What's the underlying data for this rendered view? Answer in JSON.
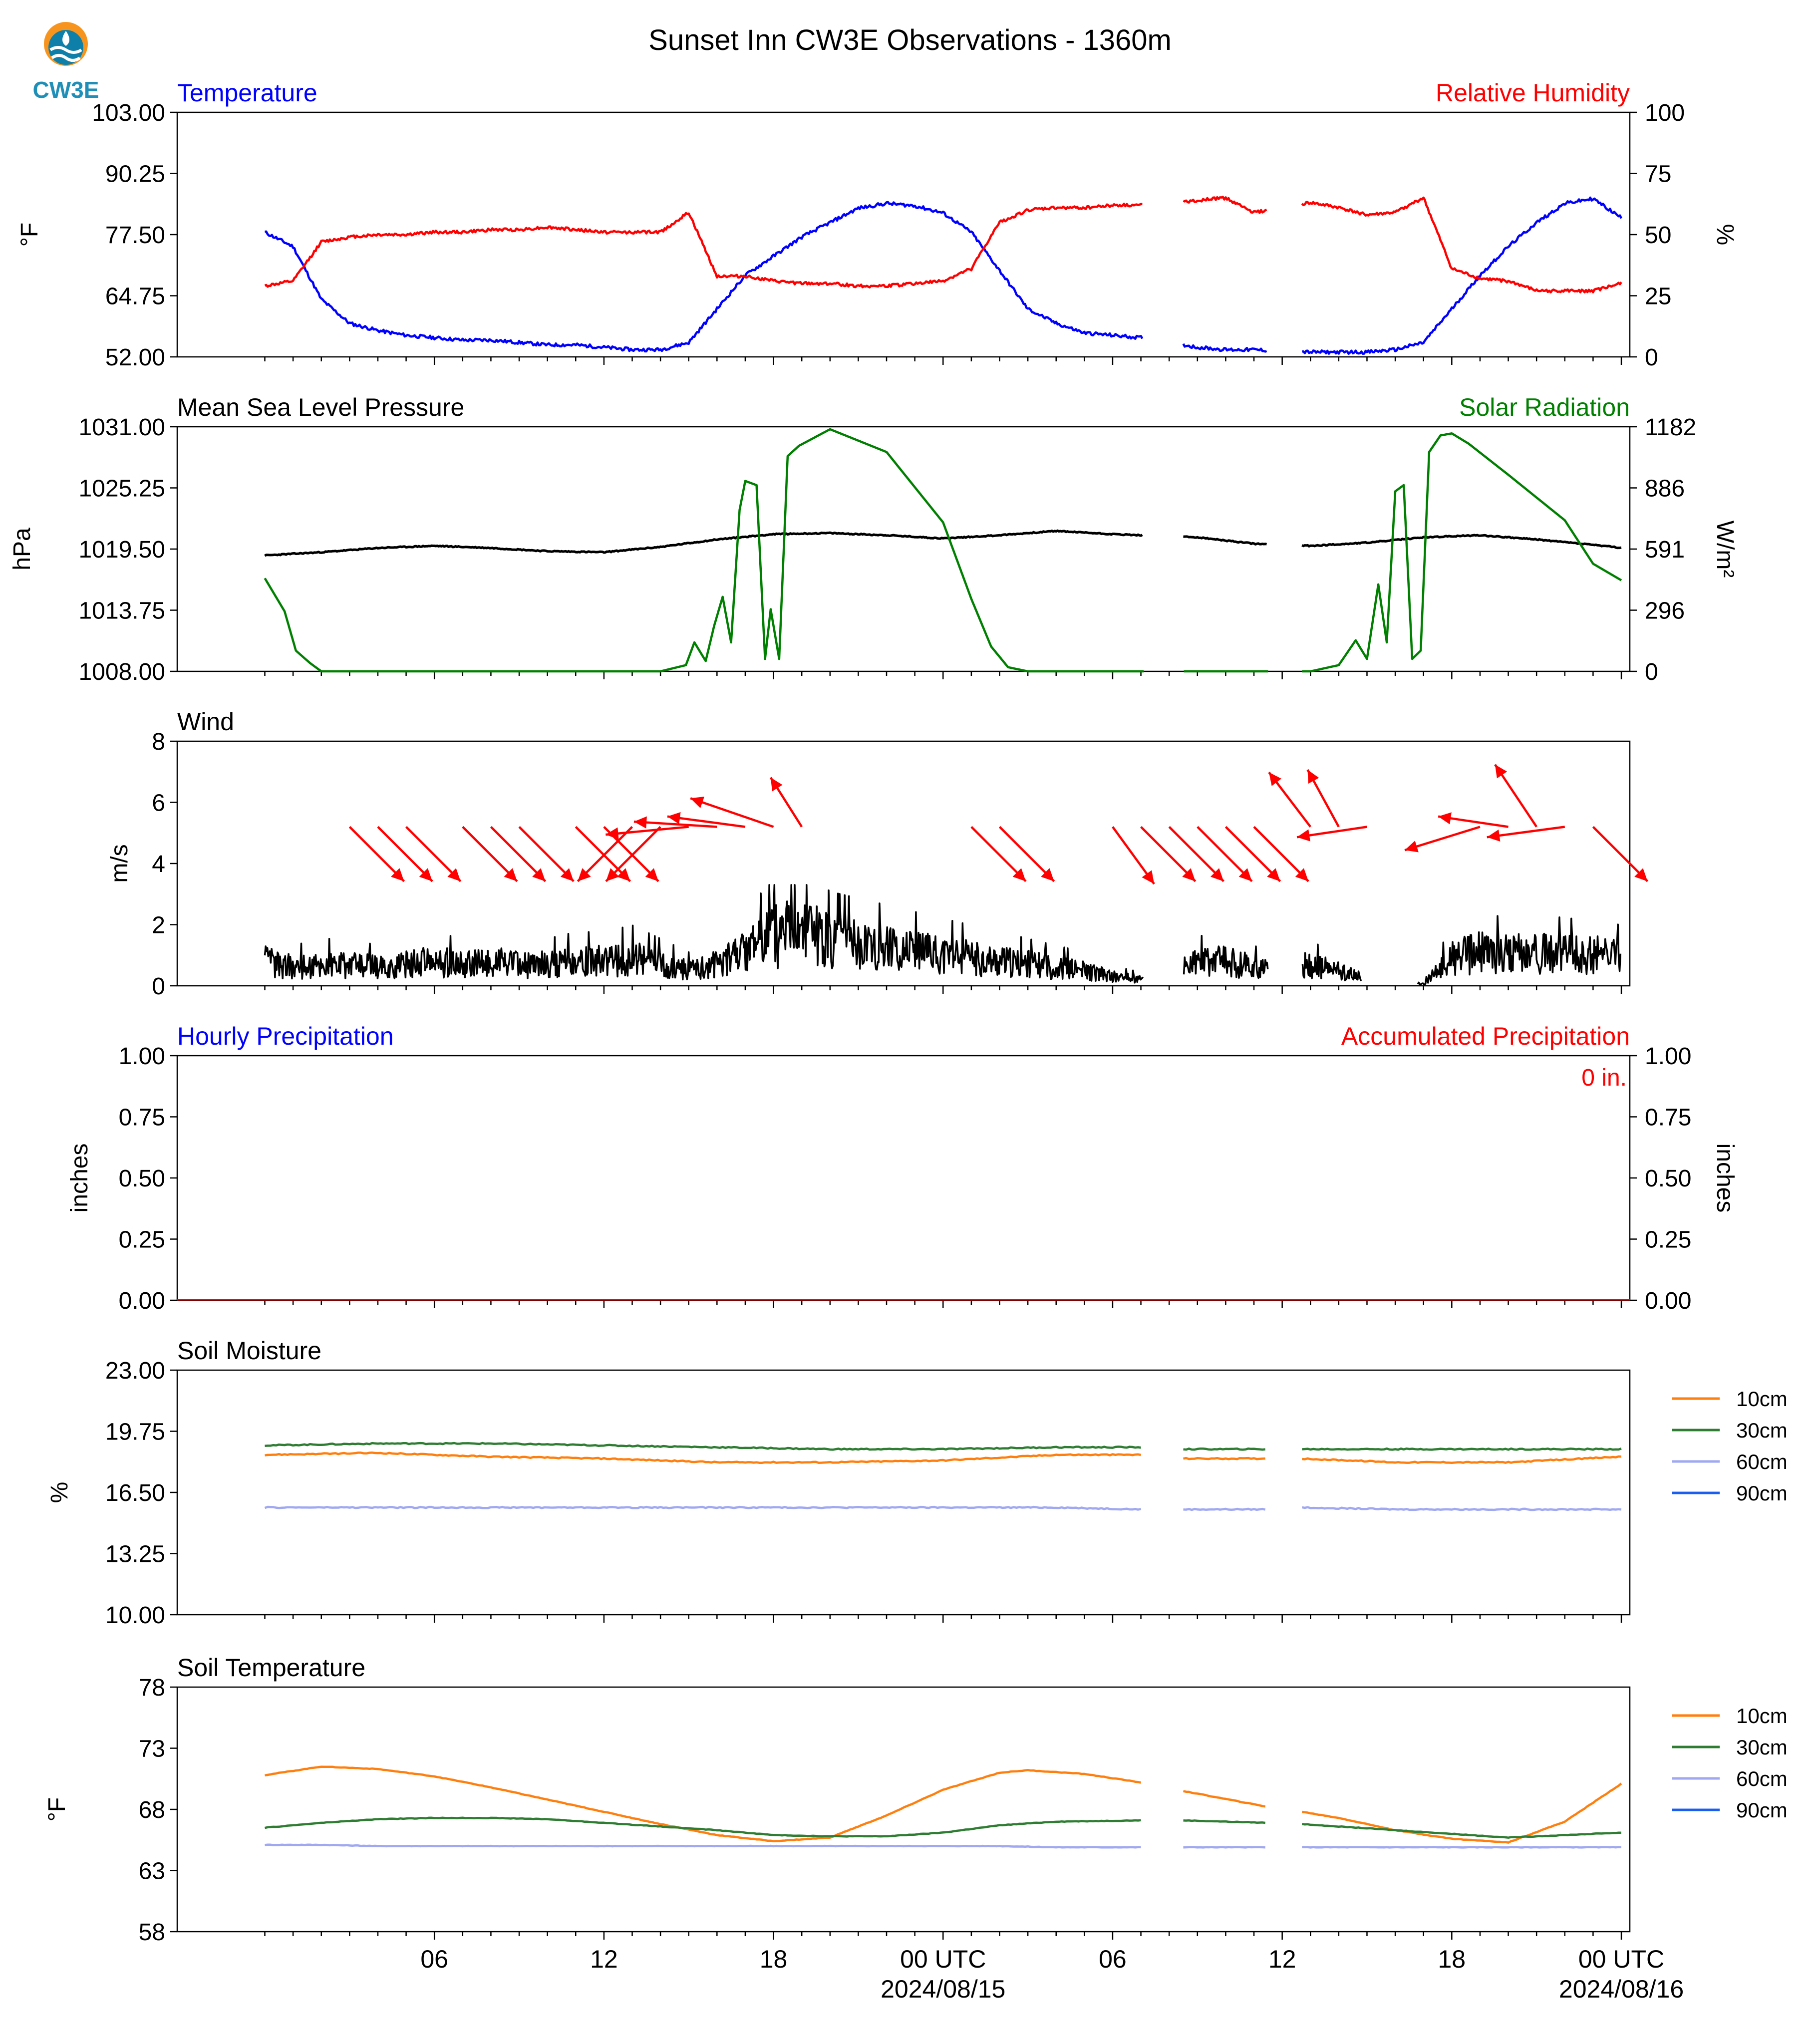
{
  "figure": {
    "title": "Sunset Inn CW3E Observations - 1360m",
    "logo_text": "CW3E"
  },
  "x_axis": {
    "tick_labels": [
      "06",
      "12",
      "18",
      "00 UTC",
      "06",
      "12",
      "18",
      "00 UTC"
    ],
    "date_labels": [
      "2024/08/15",
      "2024/08/16"
    ]
  },
  "colors": {
    "temperature": "#0000ff",
    "humidity": "#ff0000",
    "pressure": "#000000",
    "solar": "#008000",
    "wind_arrow": "#ff0000",
    "soil_10cm": "#ff7f0e",
    "soil_30cm": "#2e7d32",
    "soil_60cm": "#9fa8f0",
    "soil_90cm": "#1a5ef0"
  },
  "chart_data": [
    {
      "type": "line",
      "left_title": "Temperature",
      "right_title": "Relative Humidity",
      "ylabel": "°F",
      "ylabel_right": "%",
      "ylim": [
        52.0,
        103.0
      ],
      "ylim_right": [
        0,
        100
      ],
      "yticks": [
        "52.00",
        "64.75",
        "77.50",
        "90.25",
        "103.00"
      ],
      "yticks_right": [
        "0",
        "25",
        "50",
        "75",
        "100"
      ],
      "x_hours": [
        0,
        1,
        2,
        3,
        4,
        5,
        6,
        7,
        8,
        9,
        10,
        11,
        12,
        13,
        14,
        15,
        16,
        17,
        18,
        19,
        20,
        21,
        22,
        23,
        24,
        25,
        26,
        27,
        28,
        29,
        30,
        31,
        33,
        34,
        35,
        37,
        38,
        39,
        40,
        41,
        42,
        43,
        44,
        45,
        46,
        47,
        48
      ],
      "series": [
        {
          "name": "Temperature",
          "axis": "left",
          "values": [
            78,
            75,
            64,
            59,
            57.5,
            56.5,
            56,
            55.5,
            55.5,
            55,
            54.5,
            54.5,
            54,
            53.5,
            53.5,
            55,
            62,
            69,
            73,
            77,
            80,
            83,
            84,
            83.5,
            82,
            78,
            70,
            62,
            59,
            57,
            56.5,
            56,
            54,
            53.5,
            53.5,
            53,
            53,
            53,
            53.5,
            55,
            62,
            69,
            75,
            80,
            84,
            85,
            81
          ]
        },
        {
          "name": "Relative Humidity",
          "axis": "right",
          "values": [
            29,
            31,
            47,
            49,
            50,
            50,
            51,
            51,
            52,
            52,
            53,
            52,
            51,
            51,
            51,
            59,
            33,
            33,
            31,
            30,
            30,
            29,
            29,
            30,
            31,
            36,
            55,
            60,
            61,
            61,
            62,
            62,
            64,
            65,
            59,
            63,
            61,
            58,
            59,
            65,
            36,
            32,
            31,
            27,
            27,
            27,
            30
          ]
        }
      ],
      "gaps_hours": [
        [
          31.1,
          32.5
        ],
        [
          35.5,
          36.7
        ]
      ]
    },
    {
      "type": "line",
      "left_title": "Mean Sea Level Pressure",
      "right_title": "Solar Radiation",
      "ylabel": "hPa",
      "ylabel_right": "W/m²",
      "ylim": [
        1008.0,
        1031.0
      ],
      "ylim_right": [
        0,
        1182
      ],
      "yticks": [
        "1008.00",
        "1013.75",
        "1019.50",
        "1025.25",
        "1031.00"
      ],
      "yticks_right": [
        "0",
        "296",
        "591",
        "886",
        "1182"
      ],
      "series": [
        {
          "name": "Mean Sea Level Pressure",
          "axis": "left",
          "x_hours": [
            0,
            2,
            4,
            6,
            8,
            10,
            12,
            14,
            16,
            18,
            20,
            22,
            24,
            26,
            28,
            30,
            31,
            33,
            35,
            37,
            39,
            41,
            43,
            45,
            47,
            48
          ],
          "values": [
            1018.9,
            1019.2,
            1019.6,
            1019.8,
            1019.6,
            1019.3,
            1019.2,
            1019.7,
            1020.4,
            1020.9,
            1021.0,
            1020.8,
            1020.5,
            1020.8,
            1021.2,
            1020.9,
            1020.8,
            1020.6,
            1020.0,
            1019.8,
            1020.1,
            1020.6,
            1020.8,
            1020.4,
            1019.9,
            1019.6
          ]
        },
        {
          "name": "Solar Radiation",
          "axis": "right",
          "x_hours": [
            0,
            0.7,
            1.1,
            1.6,
            2.0,
            14.0,
            14.9,
            15.2,
            15.6,
            15.9,
            16.2,
            16.5,
            16.8,
            17.0,
            17.4,
            17.7,
            17.9,
            18.2,
            18.5,
            18.9,
            20.0,
            22.0,
            24.0,
            25.0,
            25.7,
            26.3,
            27.0,
            30.0,
            33.0,
            35.0,
            37.0,
            38.0,
            38.6,
            39.0,
            39.4,
            39.7,
            40.0,
            40.3,
            40.6,
            40.9,
            41.2,
            41.6,
            42.0,
            42.6,
            44.0,
            46.0,
            47.0,
            48.0
          ],
          "values": [
            450,
            290,
            100,
            40,
            0,
            0,
            30,
            140,
            50,
            220,
            360,
            140,
            780,
            920,
            900,
            60,
            300,
            60,
            1040,
            1090,
            1170,
            1060,
            720,
            350,
            120,
            20,
            0,
            0,
            0,
            0,
            0,
            30,
            150,
            60,
            420,
            140,
            870,
            900,
            60,
            100,
            1060,
            1140,
            1150,
            1100,
            950,
            730,
            520,
            440
          ]
        }
      ],
      "gaps_hours": [
        [
          31.1,
          32.5
        ],
        [
          35.5,
          36.7
        ]
      ]
    },
    {
      "type": "line",
      "left_title": "Wind",
      "ylabel": "m/s",
      "ylim": [
        0,
        8
      ],
      "yticks": [
        "0",
        "2",
        "4",
        "6",
        "8"
      ],
      "series": [
        {
          "name": "Wind Speed",
          "x_hours": [
            0,
            1,
            2,
            3,
            4,
            5,
            6,
            7,
            8,
            9,
            10,
            11,
            12,
            13,
            14,
            15,
            16,
            17,
            18,
            19,
            20,
            21,
            22,
            23,
            24,
            25,
            26,
            27,
            28,
            29,
            30,
            31,
            32.5,
            34,
            35.5,
            36.7,
            38,
            39,
            40,
            41,
            42,
            43,
            44,
            45,
            46,
            47,
            48
          ],
          "values": [
            0.8,
            0.6,
            0.7,
            0.7,
            0.6,
            0.7,
            0.8,
            0.7,
            0.8,
            0.7,
            0.7,
            0.8,
            0.8,
            0.9,
            0.7,
            0.5,
            0.7,
            1.1,
            1.6,
            1.8,
            1.4,
            1.3,
            1.2,
            1.1,
            1.0,
            0.9,
            0.8,
            0.7,
            0.6,
            0.5,
            0.3,
            0.2,
            0.7,
            0.8,
            0.5,
            0.7,
            0.5,
            0.2,
            0.05,
            0.05,
            0.9,
            1.1,
            1.0,
            1.1,
            1.0,
            1.0,
            0.9
          ]
        }
      ],
      "gaps_hours": [
        [
          31.1,
          32.5
        ],
        [
          35.5,
          36.7
        ]
      ],
      "arrows": {
        "x_hours": [
          3,
          4,
          5,
          7,
          8,
          9,
          11,
          12,
          13,
          14,
          15,
          16,
          17,
          18,
          19,
          25,
          26,
          30,
          31,
          32,
          33,
          34,
          35,
          37,
          38,
          39,
          43,
          44,
          45,
          46,
          47
        ],
        "u": [
          2.1,
          2.1,
          2.1,
          2.1,
          2.1,
          2.1,
          2.1,
          2.1,
          -2.1,
          -2.1,
          -3.2,
          -3.2,
          -3.0,
          -3.2,
          -1.2,
          2.1,
          2.1,
          1.6,
          2.1,
          2.1,
          2.1,
          2.1,
          2.1,
          -1.6,
          -1.2,
          -2.7,
          -2.9,
          -2.7,
          -1.6,
          -3.0,
          2.1
        ],
        "v": [
          -2.1,
          -2.1,
          -2.1,
          -2.1,
          -2.1,
          -2.1,
          -2.1,
          -2.1,
          -2.1,
          -2.1,
          -0.3,
          0.2,
          0.4,
          1.1,
          1.9,
          -2.1,
          -2.1,
          -2.2,
          -2.1,
          -2.1,
          -2.1,
          -2.1,
          -2.1,
          2.1,
          2.2,
          -0.4,
          -0.9,
          0.4,
          2.4,
          -0.4,
          -2.1
        ]
      }
    },
    {
      "type": "line",
      "left_title": "Hourly Precipitation",
      "right_title": "Accumulated Precipitation",
      "annotation": "0 in.",
      "ylabel": "inches",
      "ylabel_right": "inches",
      "ylim": [
        0,
        1
      ],
      "ylim_right": [
        0,
        1
      ],
      "yticks": [
        "0.00",
        "0.25",
        "0.50",
        "0.75",
        "1.00"
      ],
      "yticks_right": [
        "0.00",
        "0.25",
        "0.50",
        "0.75",
        "1.00"
      ],
      "series": [
        {
          "name": "Hourly Precipitation",
          "x_hours": [
            0,
            48
          ],
          "values": [
            0,
            0
          ]
        },
        {
          "name": "Accumulated Precipitation",
          "x_hours": [
            0,
            48
          ],
          "values": [
            0,
            0
          ]
        }
      ]
    },
    {
      "type": "line",
      "left_title": "Soil Moisture",
      "ylabel": "%",
      "ylim": [
        10.0,
        23.0
      ],
      "yticks": [
        "10.00",
        "13.25",
        "16.50",
        "19.75",
        "23.00"
      ],
      "legend": [
        "10cm",
        "30cm",
        "60cm",
        "90cm"
      ],
      "series": [
        {
          "name": "10cm",
          "x_hours": [
            0,
            4,
            8,
            12,
            16,
            20,
            24,
            28,
            31,
            32.5,
            35.5,
            36.7,
            40,
            44,
            48
          ],
          "values": [
            18.5,
            18.6,
            18.4,
            18.3,
            18.1,
            18.1,
            18.2,
            18.5,
            18.5,
            18.3,
            18.3,
            18.3,
            18.1,
            18.1,
            18.4
          ]
        },
        {
          "name": "30cm",
          "x_hours": [
            0,
            4,
            8,
            12,
            16,
            20,
            24,
            28,
            31,
            32.5,
            35.5,
            36.7,
            40,
            44,
            48
          ],
          "values": [
            19.0,
            19.1,
            19.1,
            19.0,
            18.9,
            18.8,
            18.8,
            18.9,
            18.9,
            18.8,
            18.8,
            18.8,
            18.8,
            18.8,
            18.8
          ]
        },
        {
          "name": "60cm",
          "x_hours": [
            0,
            4,
            8,
            12,
            16,
            20,
            24,
            28,
            31,
            32.5,
            35.5,
            36.7,
            40,
            44,
            48
          ],
          "values": [
            15.7,
            15.7,
            15.7,
            15.7,
            15.7,
            15.7,
            15.7,
            15.7,
            15.6,
            15.6,
            15.6,
            15.7,
            15.6,
            15.6,
            15.6
          ]
        }
      ],
      "gaps_hours": [
        [
          31.1,
          32.5
        ],
        [
          35.5,
          36.7
        ]
      ]
    },
    {
      "type": "line",
      "left_title": "Soil Temperature",
      "ylabel": "°F",
      "ylim": [
        58,
        78
      ],
      "yticks": [
        "58",
        "63",
        "68",
        "73",
        "78"
      ],
      "legend": [
        "10cm",
        "30cm",
        "60cm",
        "90cm"
      ],
      "series": [
        {
          "name": "10cm",
          "x_hours": [
            0,
            2,
            4,
            6,
            8,
            10,
            12,
            14,
            16,
            18,
            20,
            22,
            24,
            26,
            27,
            29,
            31,
            32.5,
            35.5,
            36.7,
            38,
            40,
            42,
            44,
            46,
            48
          ],
          "values": [
            70.8,
            71.5,
            71.3,
            70.7,
            69.8,
            68.8,
            67.8,
            66.8,
            65.9,
            65.4,
            65.7,
            67.5,
            69.6,
            71.0,
            71.2,
            70.9,
            70.2,
            69.5,
            68.2,
            67.8,
            67.3,
            66.3,
            65.6,
            65.3,
            67.0,
            70.1
          ]
        },
        {
          "name": "30cm",
          "x_hours": [
            0,
            2,
            4,
            6,
            8,
            10,
            12,
            14,
            16,
            18,
            20,
            22,
            24,
            26,
            28,
            31,
            32.5,
            35.5,
            36.7,
            40,
            44,
            48
          ],
          "values": [
            66.5,
            66.9,
            67.2,
            67.3,
            67.3,
            67.2,
            66.9,
            66.6,
            66.3,
            65.9,
            65.8,
            65.8,
            66.1,
            66.7,
            67.0,
            67.1,
            67.1,
            66.9,
            66.8,
            66.3,
            65.7,
            66.1
          ]
        },
        {
          "name": "60cm",
          "x_hours": [
            0,
            2,
            4,
            8,
            12,
            16,
            20,
            24,
            26,
            28,
            31,
            32.5,
            35.5,
            36.7,
            40,
            44,
            48
          ],
          "values": [
            65.1,
            65.1,
            65.0,
            65.0,
            65.0,
            65.0,
            65.0,
            65.0,
            65.0,
            64.9,
            64.9,
            64.9,
            64.9,
            64.9,
            64.9,
            64.9,
            64.9
          ]
        }
      ],
      "gaps_hours": [
        [
          31.1,
          32.5
        ],
        [
          35.5,
          36.7
        ]
      ]
    }
  ]
}
